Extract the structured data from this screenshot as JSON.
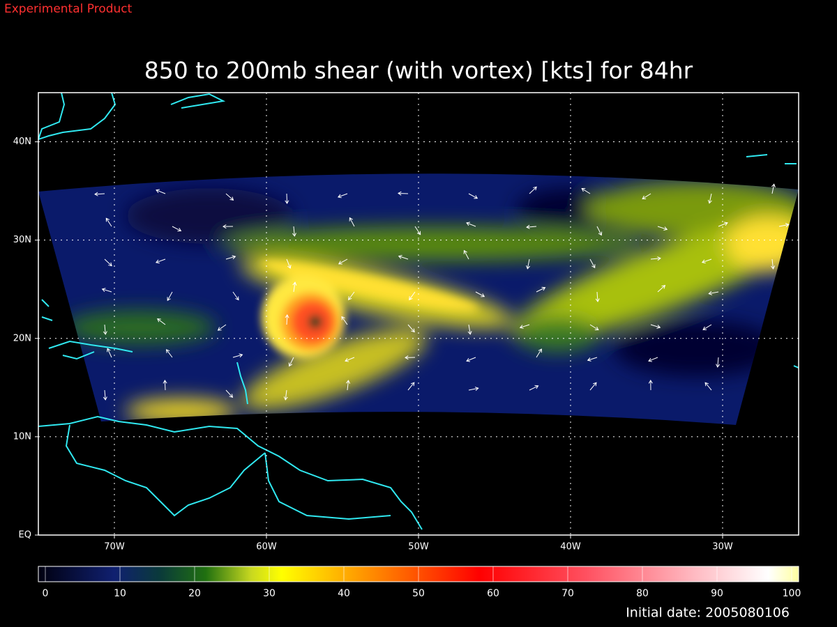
{
  "header": {
    "label": "Experimental Product",
    "title": "850 to 200mb shear (with vortex) [kts] for 84hr"
  },
  "map": {
    "lon_lim": [
      -75,
      -25
    ],
    "lat_lim": [
      0,
      45
    ],
    "lat_ticks": [
      {
        "value": 0,
        "label": "EQ"
      },
      {
        "value": 10,
        "label": "10N"
      },
      {
        "value": 20,
        "label": "20N"
      },
      {
        "value": 30,
        "label": "30N"
      },
      {
        "value": 40,
        "label": "40N"
      }
    ],
    "lon_ticks": [
      {
        "value": -70,
        "label": "70W"
      },
      {
        "value": -60,
        "label": "60W"
      },
      {
        "value": -50,
        "label": "50W"
      },
      {
        "value": -40,
        "label": "40W"
      },
      {
        "value": -30,
        "label": "30W"
      }
    ]
  },
  "colorbar": {
    "lim": [
      0,
      100
    ],
    "ticks": [
      0,
      10,
      20,
      30,
      40,
      50,
      60,
      70,
      80,
      90,
      100
    ]
  },
  "footer": {
    "initial_date": "Initial date: 2005080106"
  }
}
